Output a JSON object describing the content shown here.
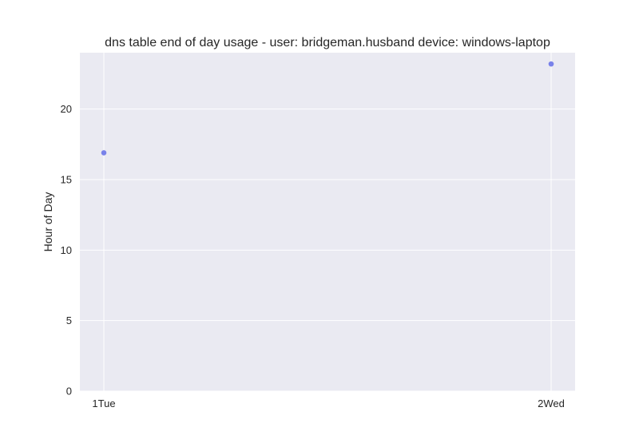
{
  "chart_data": {
    "type": "scatter",
    "title": "dns table end of day usage -  user: bridgeman.husband device: windows-laptop",
    "xlabel": "",
    "ylabel": "Hour of Day",
    "categories": [
      "1Tue",
      "2Wed"
    ],
    "series": [
      {
        "values": [
          16.9,
          23.2
        ]
      }
    ],
    "yticks": [
      0,
      5,
      10,
      15,
      20
    ],
    "ylim": [
      0,
      24
    ],
    "grid": true,
    "legend": "none",
    "colors": {
      "plot_background": "#eaeaf2",
      "grid": "#ffffff",
      "marker": "#6b76e8",
      "text": "#262626"
    }
  }
}
